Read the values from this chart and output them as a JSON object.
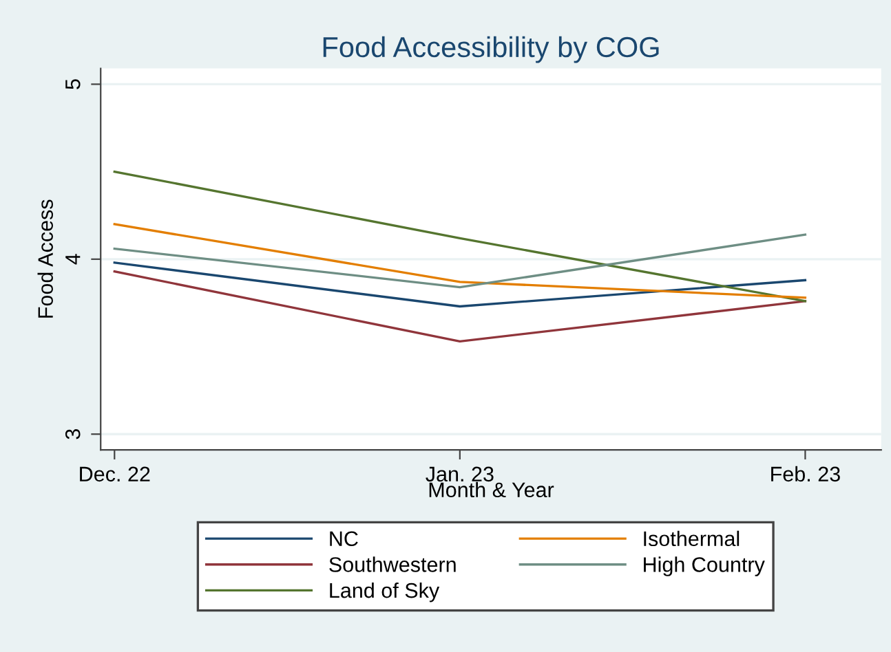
{
  "chart_data": {
    "type": "line",
    "title": "Food Accessibility by COG",
    "xlabel": "Month & Year",
    "ylabel": "Food Access",
    "categories": [
      "Dec. 22",
      "Jan. 23",
      "Feb. 23"
    ],
    "series": [
      {
        "name": "NC",
        "color": "#1a476f",
        "values": [
          3.98,
          3.73,
          3.88
        ]
      },
      {
        "name": "Southwestern",
        "color": "#90353b",
        "values": [
          3.93,
          3.53,
          3.76
        ]
      },
      {
        "name": "Land of Sky",
        "color": "#55752f",
        "values": [
          4.5,
          4.12,
          3.76
        ]
      },
      {
        "name": "Isothermal",
        "color": "#e37e00",
        "values": [
          4.2,
          3.87,
          3.78
        ]
      },
      {
        "name": "High Country",
        "color": "#6e8e84",
        "values": [
          4.06,
          3.84,
          4.14
        ]
      }
    ],
    "ylim": [
      2.91,
      5.09
    ],
    "yticks": [
      3,
      4,
      5
    ],
    "grid": "y",
    "legend": "bottom"
  }
}
